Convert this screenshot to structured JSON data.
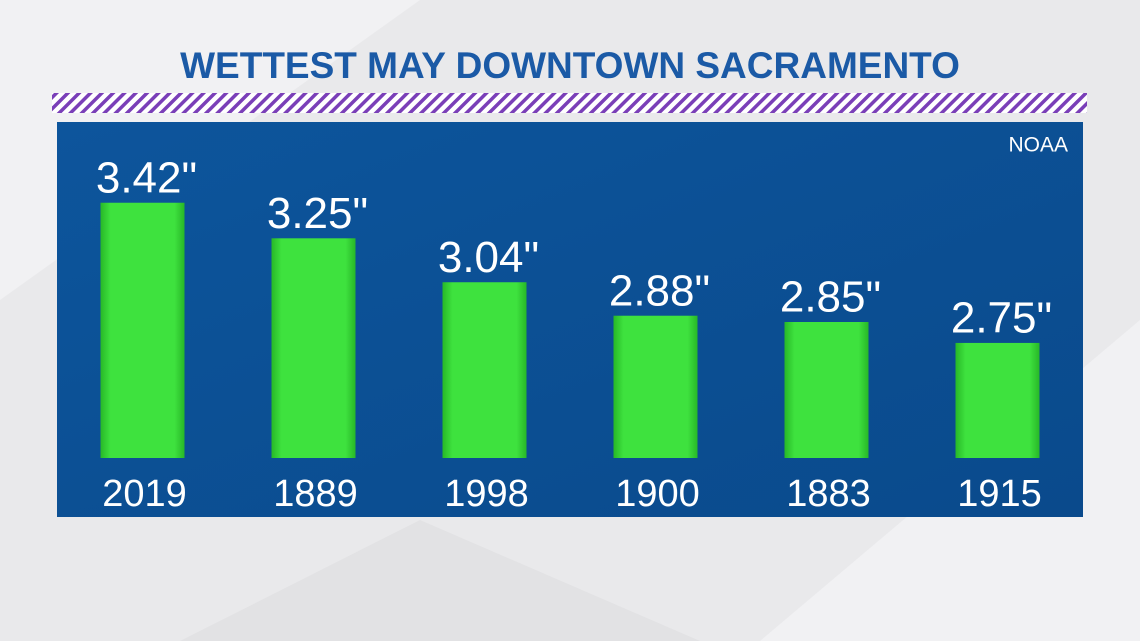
{
  "chart_data": {
    "type": "bar",
    "title": "WETTEST MAY DOWNTOWN SACRAMENTO",
    "source": "NOAA",
    "categories": [
      "2019",
      "1889",
      "1998",
      "1900",
      "1883",
      "1915"
    ],
    "values": [
      3.42,
      3.25,
      3.04,
      2.88,
      2.85,
      2.75
    ],
    "value_labels": [
      "3.42\"",
      "3.25\"",
      "3.04\"",
      "2.88\"",
      "2.85\"",
      "2.75\""
    ],
    "color": "#33d633",
    "ylim": [
      2.2,
      3.5
    ]
  }
}
